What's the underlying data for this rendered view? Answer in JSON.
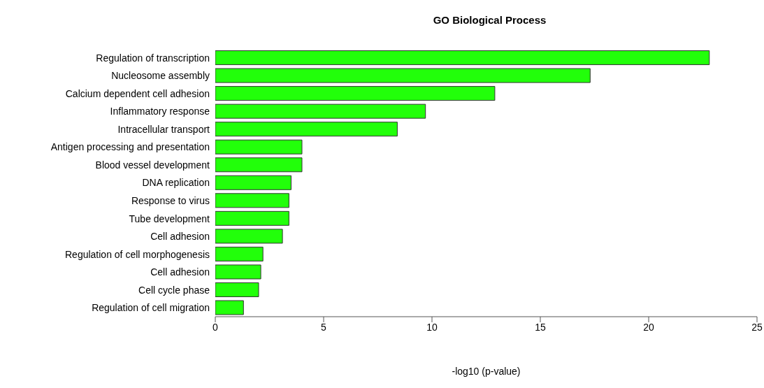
{
  "chart_data": {
    "type": "bar",
    "orientation": "horizontal",
    "title": "GO Biological Process",
    "xlabel": "-log10 (p-value)",
    "categories": [
      "Regulation of transcription",
      "Nucleosome assembly",
      "Calcium dependent cell adhesion",
      "Inflammatory response",
      "Intracellular transport",
      "Antigen processing and presentation",
      "Blood vessel development",
      "DNA replication",
      "Response to virus",
      "Tube development",
      "Cell adhesion",
      "Regulation of cell morphogenesis",
      "Cell adhesion",
      "Cell cycle phase",
      "Regulation of cell migration"
    ],
    "values": [
      22.8,
      17.3,
      12.9,
      9.7,
      8.4,
      4.0,
      4.0,
      3.5,
      3.4,
      3.4,
      3.1,
      2.2,
      2.1,
      2.0,
      1.3
    ],
    "color": "#22ff0a",
    "xlim": [
      0,
      25
    ],
    "xticks": [
      0,
      5,
      10,
      15,
      20,
      25
    ],
    "grid": false,
    "legend": false
  }
}
